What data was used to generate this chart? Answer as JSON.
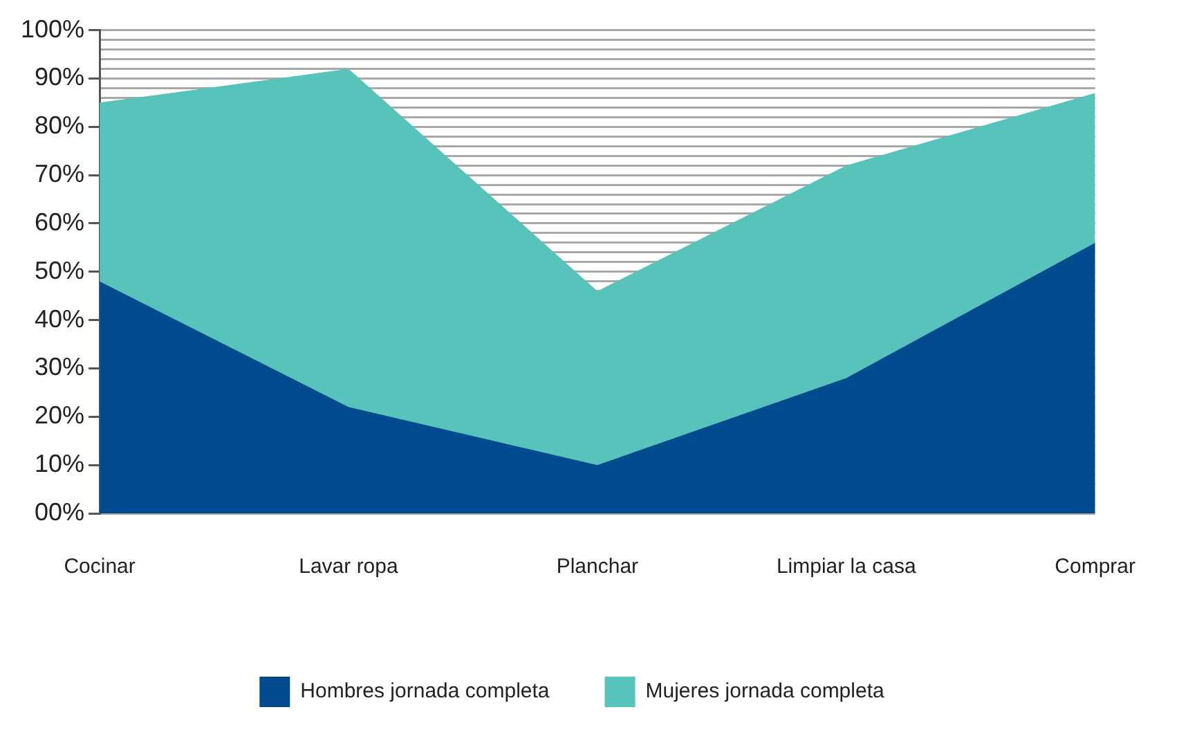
{
  "chart_data": {
    "type": "area",
    "categories": [
      "Cocinar",
      "Lavar ropa",
      "Planchar",
      "Limpiar la casa",
      "Comprar"
    ],
    "series": [
      {
        "name": "Mujeres jornada completa",
        "color": "#57c3bb",
        "values": [
          85,
          92,
          46,
          72,
          87
        ]
      },
      {
        "name": "Hombres jornada completa",
        "color": "#004b8d",
        "values": [
          48,
          22,
          10,
          28,
          56
        ]
      }
    ],
    "ylim": [
      0,
      100
    ],
    "yticks": [
      {
        "value": 0,
        "label": "00%"
      },
      {
        "value": 2,
        "label": null
      },
      {
        "value": 4,
        "label": null
      },
      {
        "value": 6,
        "label": null
      },
      {
        "value": 8,
        "label": null
      },
      {
        "value": 10,
        "label": "10%"
      },
      {
        "value": 12,
        "label": null
      },
      {
        "value": 14,
        "label": null
      },
      {
        "value": 16,
        "label": null
      },
      {
        "value": 18,
        "label": null
      },
      {
        "value": 20,
        "label": "20%"
      },
      {
        "value": 22,
        "label": null
      },
      {
        "value": 24,
        "label": null
      },
      {
        "value": 26,
        "label": null
      },
      {
        "value": 28,
        "label": null
      },
      {
        "value": 30,
        "label": "30%"
      },
      {
        "value": 32,
        "label": null
      },
      {
        "value": 34,
        "label": null
      },
      {
        "value": 36,
        "label": null
      },
      {
        "value": 38,
        "label": null
      },
      {
        "value": 40,
        "label": "40%"
      },
      {
        "value": 42,
        "label": null
      },
      {
        "value": 44,
        "label": null
      },
      {
        "value": 46,
        "label": null
      },
      {
        "value": 48,
        "label": null
      },
      {
        "value": 50,
        "label": "50%"
      },
      {
        "value": 52,
        "label": null
      },
      {
        "value": 54,
        "label": null
      },
      {
        "value": 56,
        "label": null
      },
      {
        "value": 58,
        "label": null
      },
      {
        "value": 60,
        "label": "60%"
      },
      {
        "value": 62,
        "label": null
      },
      {
        "value": 64,
        "label": null
      },
      {
        "value": 66,
        "label": null
      },
      {
        "value": 68,
        "label": null
      },
      {
        "value": 70,
        "label": "70%"
      },
      {
        "value": 72,
        "label": null
      },
      {
        "value": 74,
        "label": null
      },
      {
        "value": 76,
        "label": null
      },
      {
        "value": 78,
        "label": null
      },
      {
        "value": 80,
        "label": "80%"
      },
      {
        "value": 82,
        "label": null
      },
      {
        "value": 84,
        "label": null
      },
      {
        "value": 86,
        "label": null
      },
      {
        "value": 88,
        "label": null
      },
      {
        "value": 90,
        "label": "90%"
      },
      {
        "value": 92,
        "label": null
      },
      {
        "value": 94,
        "label": null
      },
      {
        "value": 96,
        "label": null
      },
      {
        "value": 98,
        "label": null
      },
      {
        "value": 100,
        "label": "100%"
      }
    ],
    "grid": "y",
    "legend": "bottom"
  }
}
